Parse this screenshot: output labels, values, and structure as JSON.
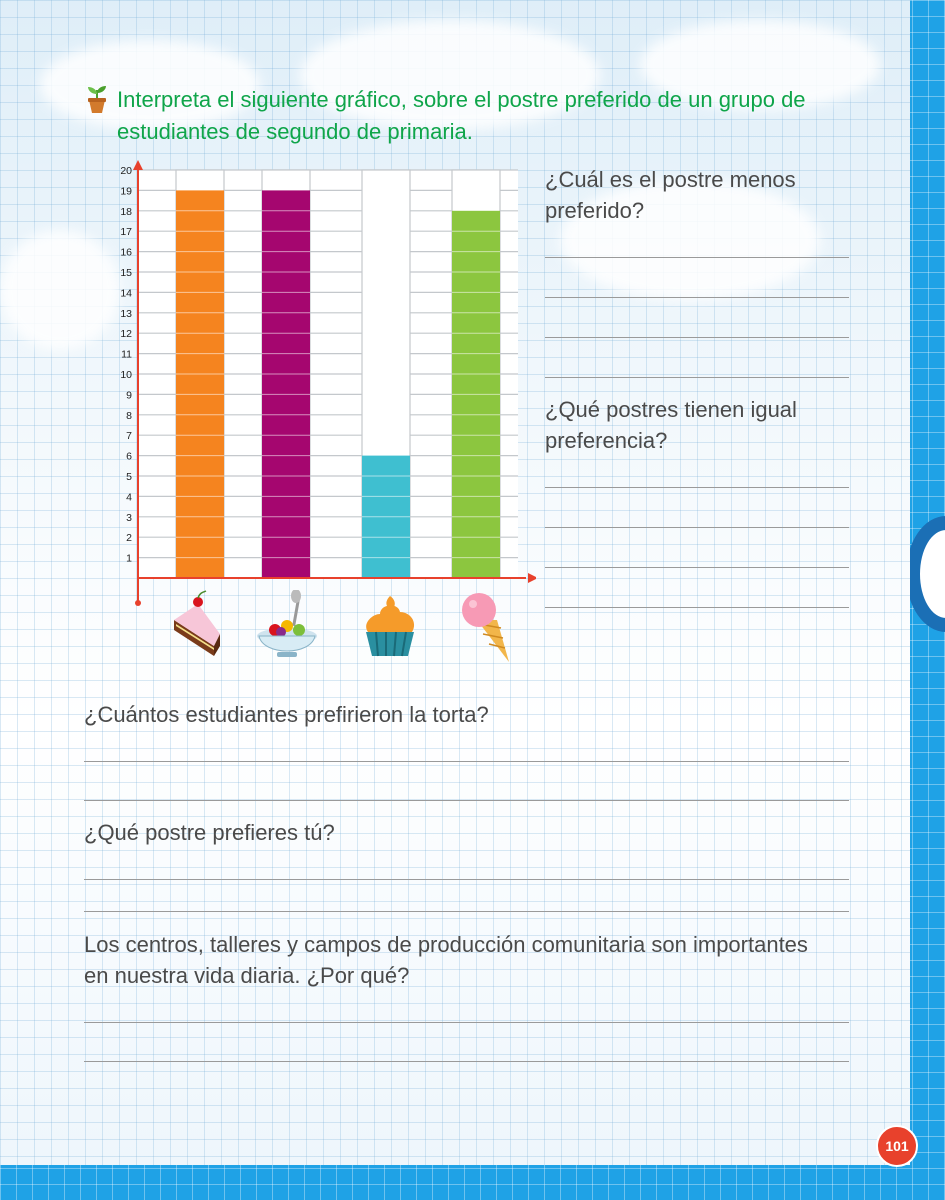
{
  "instruction": {
    "line1": "Interpreta el siguiente gráfico, sobre el postre preferido de un grupo de",
    "line2": "estudiantes de segundo de primaria."
  },
  "questions": {
    "q1_line1": "¿Cuál es el postre menos",
    "q1_line2": "preferido?",
    "q2_line1": "¿Qué postres tienen igual",
    "q2_line2": "preferencia?",
    "q3": "¿Cuántos estudiantes prefirieron la torta?",
    "q4": "¿Qué postre prefieres tú?",
    "q5_line1": "Los centros, talleres y campos de producción comunitaria son importantes",
    "q5_line2": "en nuestra vida diaria. ¿Por qué?"
  },
  "page_number": "101",
  "chart_data": {
    "type": "bar",
    "categories": [
      "torta",
      "ensalada de frutas",
      "cupcake",
      "helado"
    ],
    "values": [
      19,
      19,
      6,
      18
    ],
    "colors": [
      "#f5841f",
      "#a5066f",
      "#3fbfd0",
      "#8cc63f"
    ],
    "category_icons": [
      "cake-slice-icon",
      "fruit-salad-icon",
      "cupcake-icon",
      "ice-cream-cone-icon"
    ],
    "yticks": [
      "1",
      "2",
      "3",
      "4",
      "5",
      "6",
      "7",
      "8",
      "9",
      "10",
      "11",
      "12",
      "13",
      "14",
      "15",
      "16",
      "17",
      "18",
      "19",
      "20"
    ],
    "ylim": [
      0,
      20
    ],
    "grid": true
  }
}
